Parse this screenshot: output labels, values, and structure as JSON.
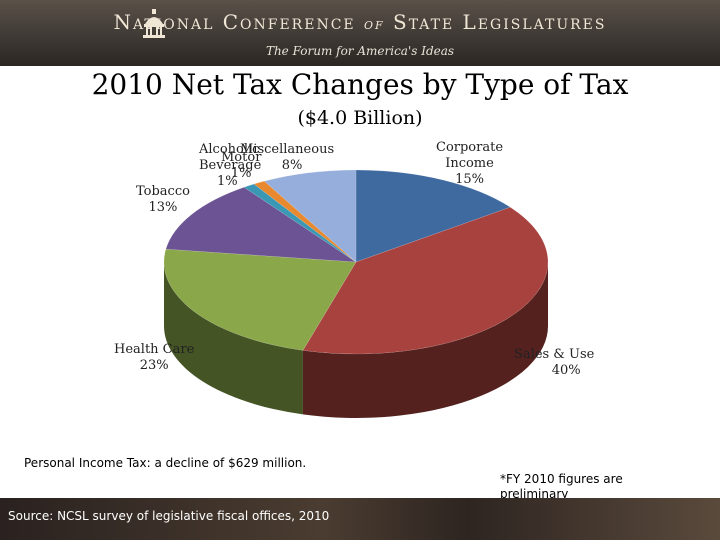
{
  "header": {
    "org_name_part1": "National Conference",
    "org_name_of": "of",
    "org_name_part2": "State Legislatures",
    "tagline": "The Forum for America's Ideas"
  },
  "chart_data": {
    "type": "pie",
    "title": "2010 Net Tax Changes by Type of Tax",
    "subtitle": "($4.0 Billion)",
    "slices": [
      {
        "name": "Corporate Income",
        "value": 15,
        "label": "15%",
        "color": "#3f6aa0"
      },
      {
        "name": "Sales & Use",
        "value": 40,
        "label": "40%",
        "color": "#a8423e"
      },
      {
        "name": "Health Care",
        "value": 23,
        "label": "23%",
        "color": "#8aa74a"
      },
      {
        "name": "Tobacco",
        "value": 13,
        "label": "13%",
        "color": "#6c5394"
      },
      {
        "name": "Alcoholic Beverage",
        "value": 1,
        "label": "1%",
        "color": "#3a98b4"
      },
      {
        "name": "Motor Fuel",
        "value": 1,
        "label": "1%",
        "color": "#e8892f"
      },
      {
        "name": "Miscellaneous",
        "value": 8,
        "label": "8%",
        "color": "#96aedb"
      }
    ],
    "slice_labels": {
      "corporate": {
        "line1": "Corporate",
        "line2": "Income",
        "line3": "15%"
      },
      "sales": {
        "line1": "Sales & Use",
        "line2": "40%"
      },
      "health": {
        "line1": "Health Care",
        "line2": "23%"
      },
      "tobacco": {
        "line1": "Tobacco",
        "line2": "13%"
      },
      "alcohol": {
        "line1": "Alcoholic",
        "line2": "Beverage",
        "line3": "1%"
      },
      "motor": {
        "line1": "Motor",
        "line2": "1%"
      },
      "misc": {
        "line1": "Miscellaneous",
        "line2": "8%"
      }
    }
  },
  "notes": {
    "personal_income": "Personal Income Tax: a decline of $629 million.",
    "preliminary": "*FY 2010 figures are preliminary"
  },
  "footer": {
    "source": "Source: NCSL survey of legislative fiscal offices, 2010"
  }
}
